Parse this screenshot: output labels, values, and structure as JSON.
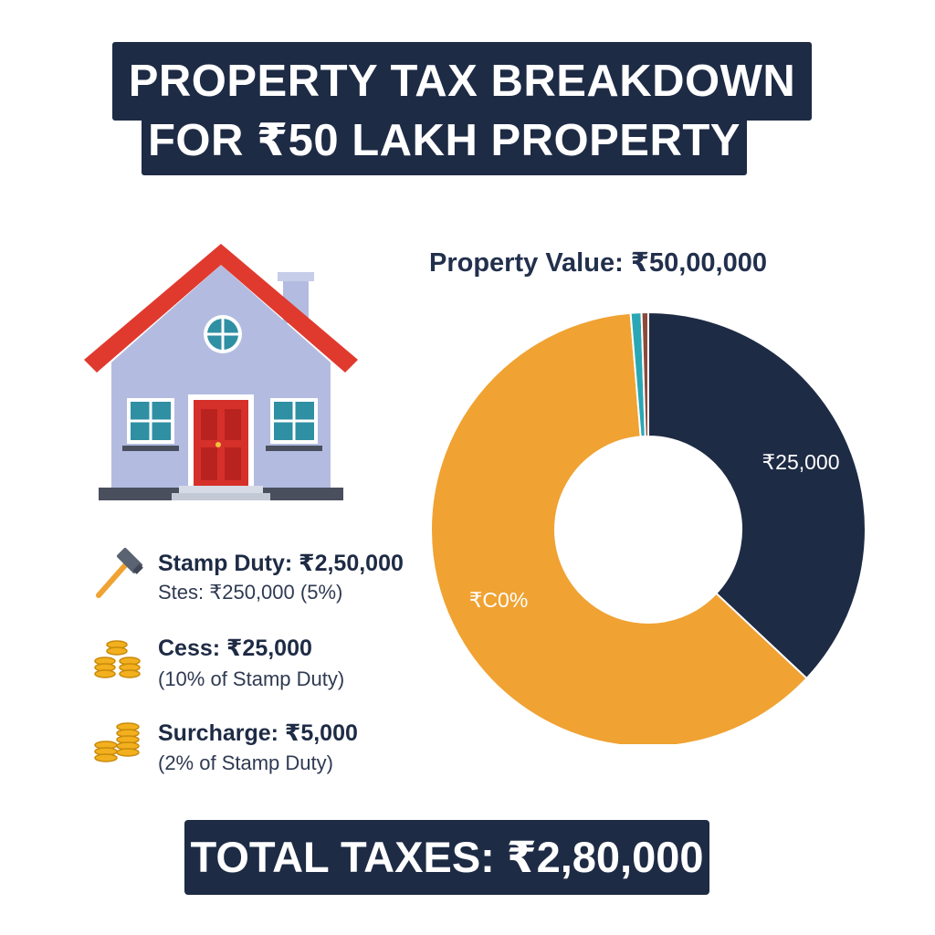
{
  "title": {
    "line1": "PROPERTY TAX BREAKDOWN",
    "line2": "FOR ₹50 LAKH PROPERTY"
  },
  "property_value_label": "Property Value: ₹50,00,000",
  "legend": [
    {
      "title": "Stamp Duty: ₹2,50,000",
      "subtitle": "Stes: ₹250,000 (5%)",
      "icon": "hammer-icon"
    },
    {
      "title": "Cess: ₹25,000",
      "subtitle": "(10% of Stamp Duty)",
      "icon": "coins-icon"
    },
    {
      "title": "Surcharge: ₹5,000",
      "subtitle": "(2% of Stamp Duty)",
      "icon": "coins-icon"
    }
  ],
  "total": "TOTAL TAXES: ₹2,80,000",
  "chart_data": {
    "type": "pie",
    "donut": true,
    "start_angle_deg": 0,
    "slices": [
      {
        "value": 37.0,
        "color": "#1e2b45",
        "label": "₹25,000"
      },
      {
        "value": 61.7,
        "color": "#f0a232",
        "label": "₹C0%"
      },
      {
        "value": 0.8,
        "color": "#2aa7b4",
        "label": ""
      },
      {
        "value": 0.5,
        "color": "#8b4a3a",
        "label": ""
      }
    ]
  },
  "colors": {
    "navy": "#1e2b45",
    "orange": "#f0a232",
    "teal": "#2aa7b4",
    "brown": "#8b4a3a",
    "roof_red": "#e03a2f",
    "house_wall": "#b3bce0"
  }
}
